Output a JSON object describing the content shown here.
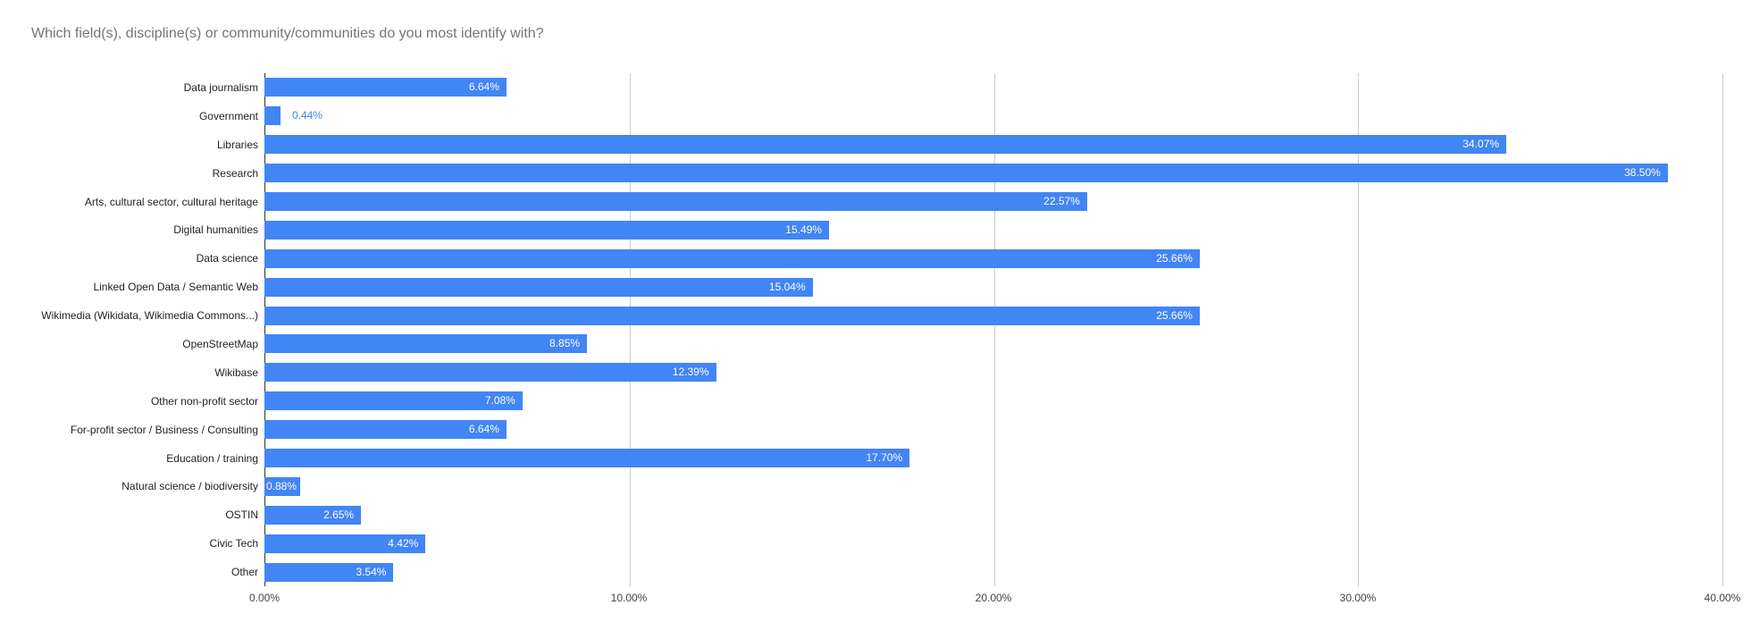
{
  "title": "Which field(s), discipline(s) or community/communities do you most identify with?",
  "colors": {
    "bar": "#4285f4",
    "annotation_inside_text": "#ffffff",
    "annotation_outside_text": "#4285f4",
    "title_text": "#757575",
    "gridline": "#cccccc",
    "baseline": "#333333",
    "axis_text": "#444444",
    "category_text": "#222222",
    "background": "#ffffff"
  },
  "chart_data": {
    "type": "bar",
    "orientation": "horizontal",
    "title": "Which field(s), discipline(s) or community/communities do you most identify with?",
    "xlabel": "",
    "ylabel": "",
    "legend": "none",
    "grid": true,
    "xlim": [
      0,
      40
    ],
    "x_ticks": [
      "0.00%",
      "10.00%",
      "20.00%",
      "30.00%",
      "40.00%"
    ],
    "x_tick_values": [
      0,
      10,
      20,
      30,
      40
    ],
    "categories": [
      "Data journalism",
      "Government",
      "Libraries",
      "Research",
      "Arts, cultural sector, cultural heritage",
      "Digital humanities",
      "Data science",
      "Linked Open Data / Semantic Web",
      "Wikimedia (Wikidata, Wikimedia Commons...)",
      "OpenStreetMap",
      "Wikibase",
      "Other non-profit sector",
      "For-profit sector / Business / Consulting",
      "Education / training",
      "Natural science / biodiversity",
      "OSTIN",
      "Civic Tech",
      "Other"
    ],
    "values": [
      6.64,
      0.44,
      34.07,
      38.5,
      22.57,
      15.49,
      25.66,
      15.04,
      25.66,
      8.85,
      12.39,
      7.08,
      6.64,
      17.7,
      0.88,
      2.65,
      4.42,
      3.54
    ],
    "value_labels": [
      "6.64%",
      "0.44%",
      "34.07%",
      "38.50%",
      "22.57%",
      "15.49%",
      "25.66%",
      "15.04%",
      "25.66%",
      "8.85%",
      "12.39%",
      "7.08%",
      "6.64%",
      "17.70%",
      "0.88%",
      "2.65%",
      "4.42%",
      "3.54%"
    ],
    "label_placement": [
      "inside",
      "outside",
      "inside",
      "inside",
      "inside",
      "inside",
      "inside",
      "inside",
      "inside",
      "inside",
      "inside",
      "inside",
      "inside",
      "inside",
      "overflow",
      "inside",
      "inside",
      "inside"
    ]
  }
}
